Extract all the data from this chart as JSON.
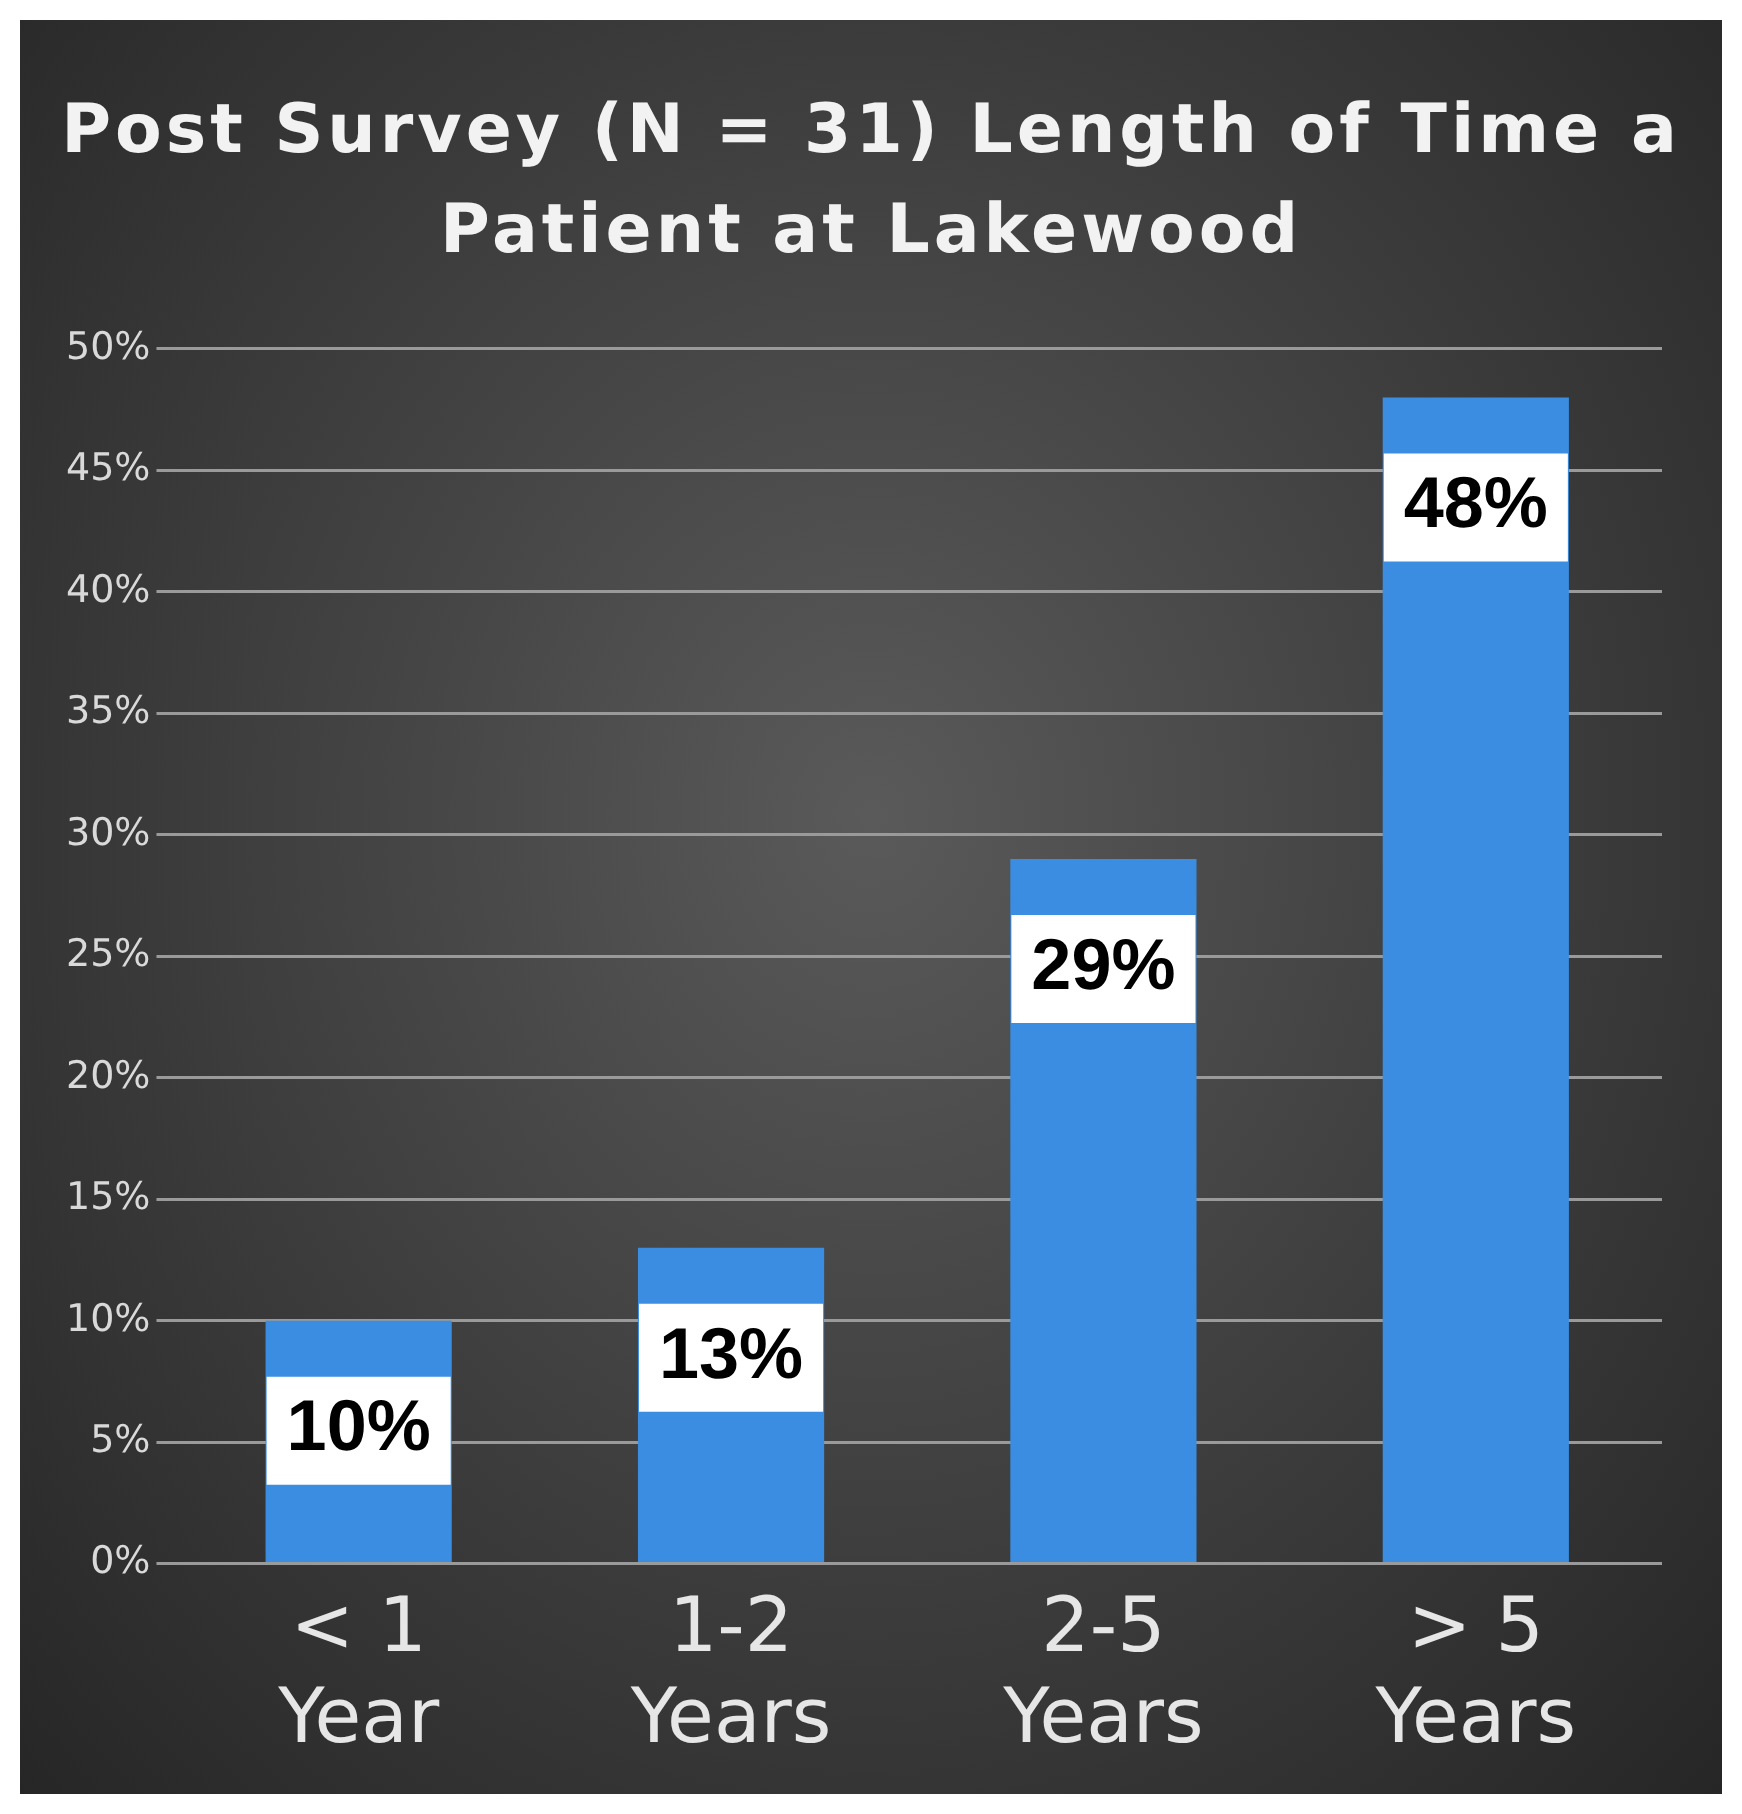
{
  "chart_data": {
    "type": "bar",
    "title": "Post Survey (N = 31) Length of Time a Patient at Lakewood",
    "categories": [
      "< 1 Year",
      "1-2 Years",
      "2-5 Years",
      "> 5 Years"
    ],
    "values": [
      10,
      13,
      29,
      48
    ],
    "color": "#3a8de0",
    "value_labels": [
      "10%",
      "13%",
      "29%",
      "48%"
    ],
    "ylim": [
      0,
      50
    ],
    "yticks": [
      {
        "value": 0,
        "label": "0%"
      },
      {
        "value": 5,
        "label": "5%"
      },
      {
        "value": 10,
        "label": "10%"
      },
      {
        "value": 15,
        "label": "15%"
      },
      {
        "value": 20,
        "label": "20%"
      },
      {
        "value": 25,
        "label": "25%"
      },
      {
        "value": 30,
        "label": "30%"
      },
      {
        "value": 35,
        "label": "35%"
      },
      {
        "value": 40,
        "label": "40%"
      },
      {
        "value": 45,
        "label": "45%"
      },
      {
        "value": 50,
        "label": "50%"
      }
    ],
    "grid": "y",
    "legend": false
  }
}
